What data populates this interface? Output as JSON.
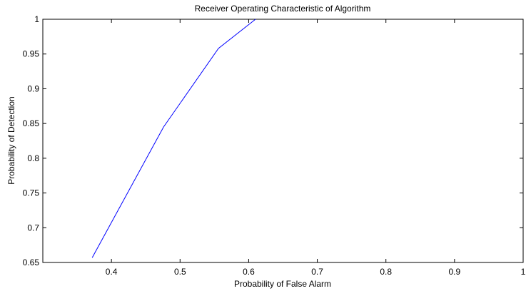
{
  "chart_data": {
    "type": "line",
    "title": "Receiver Operating Characteristic of Algorithm",
    "xlabel": "Probability of False Alarm",
    "ylabel": "Probability of Detection",
    "xlim": [
      0.3,
      1.0
    ],
    "ylim": [
      0.65,
      1.0
    ],
    "x_ticks": [
      0.4,
      0.5,
      0.6,
      0.7,
      0.8,
      0.9,
      1.0
    ],
    "x_tick_labels": [
      "0.4",
      "0.5",
      "0.6",
      "0.7",
      "0.8",
      "0.9",
      "1"
    ],
    "y_ticks": [
      0.65,
      0.7,
      0.75,
      0.8,
      0.85,
      0.9,
      0.95,
      1.0
    ],
    "y_tick_labels": [
      "0.65",
      "0.7",
      "0.75",
      "0.8",
      "0.85",
      "0.9",
      "0.95",
      "1"
    ],
    "grid": false,
    "legend": "none",
    "series": [
      {
        "color": "#0000ff",
        "x": [
          0.372,
          0.476,
          0.556,
          0.61
        ],
        "y": [
          0.657,
          0.845,
          0.958,
          1.0
        ]
      }
    ]
  }
}
